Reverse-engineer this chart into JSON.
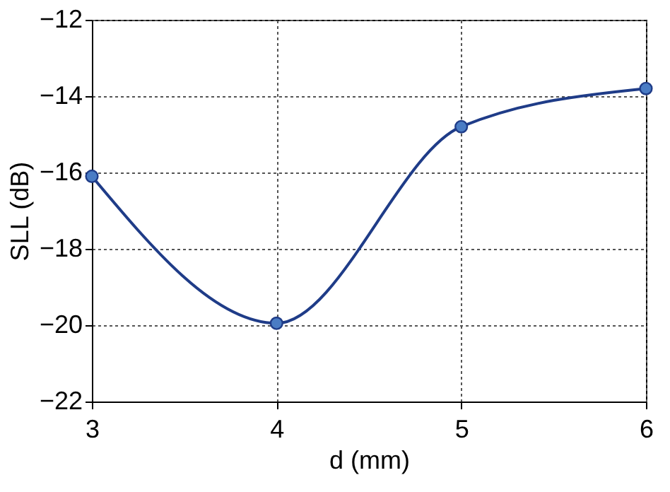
{
  "chart_data": {
    "type": "line",
    "xlabel": "d (mm)",
    "ylabel": "SLL (dB)",
    "x": [
      3,
      4,
      5,
      6
    ],
    "series": [
      {
        "color": "#1f3c88",
        "values": [
          -16.1,
          -19.95,
          -14.8,
          -13.8
        ]
      }
    ],
    "xlim": [
      3,
      6
    ],
    "xticks": [
      3,
      4,
      5,
      6
    ],
    "ylim": [
      -22,
      -12
    ],
    "yticks": [
      -22,
      -20,
      -18,
      -16,
      -14,
      -12
    ],
    "grid": true,
    "marker": "circle",
    "line_style": "solid"
  }
}
